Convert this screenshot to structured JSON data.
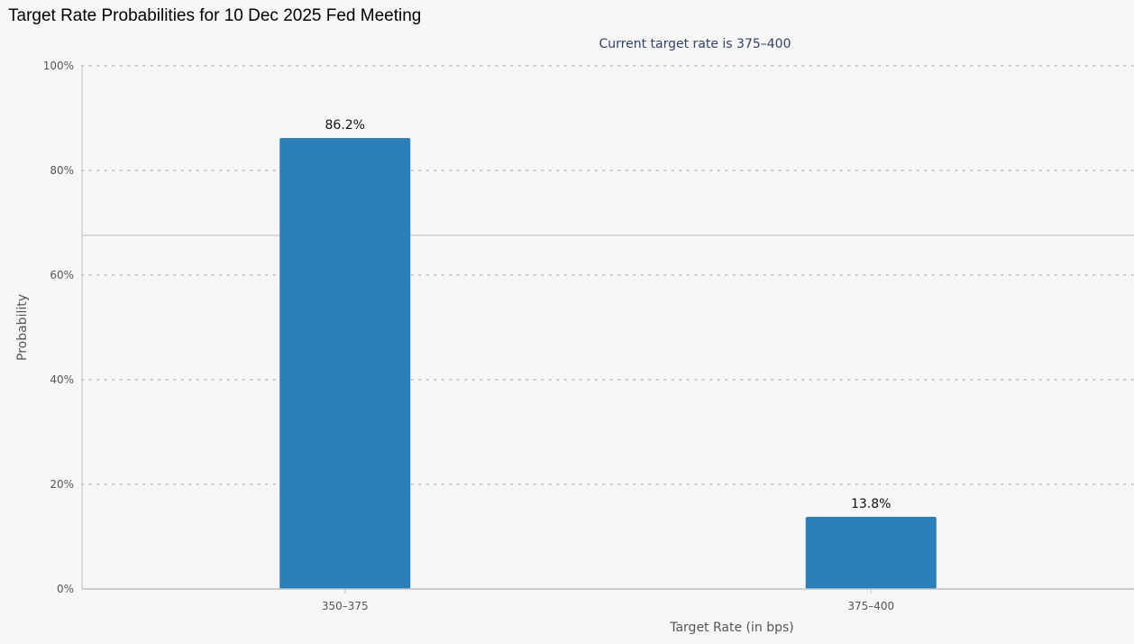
{
  "title": "Target Rate Probabilities for 10 Dec 2025 Fed Meeting",
  "chart_data": {
    "type": "bar",
    "subtitle": "Current target rate is 375–400",
    "categories": [
      "350–375",
      "375–400"
    ],
    "values": [
      86.2,
      13.8
    ],
    "data_labels": [
      "86.2%",
      "13.8%"
    ],
    "xlabel": "Target Rate (in bps)",
    "ylabel": "Probability",
    "ylim": [
      0,
      100
    ],
    "yticks": [
      0,
      20,
      40,
      60,
      80,
      100
    ],
    "ytick_labels": [
      "0%",
      "20%",
      "40%",
      "60%",
      "80%",
      "100%"
    ],
    "reference_line": 67.6,
    "grid": true,
    "legend": "none",
    "bar_color": "#2a7fb8",
    "grid_color": "#cccccc",
    "axis_color": "#c0c0c0"
  }
}
